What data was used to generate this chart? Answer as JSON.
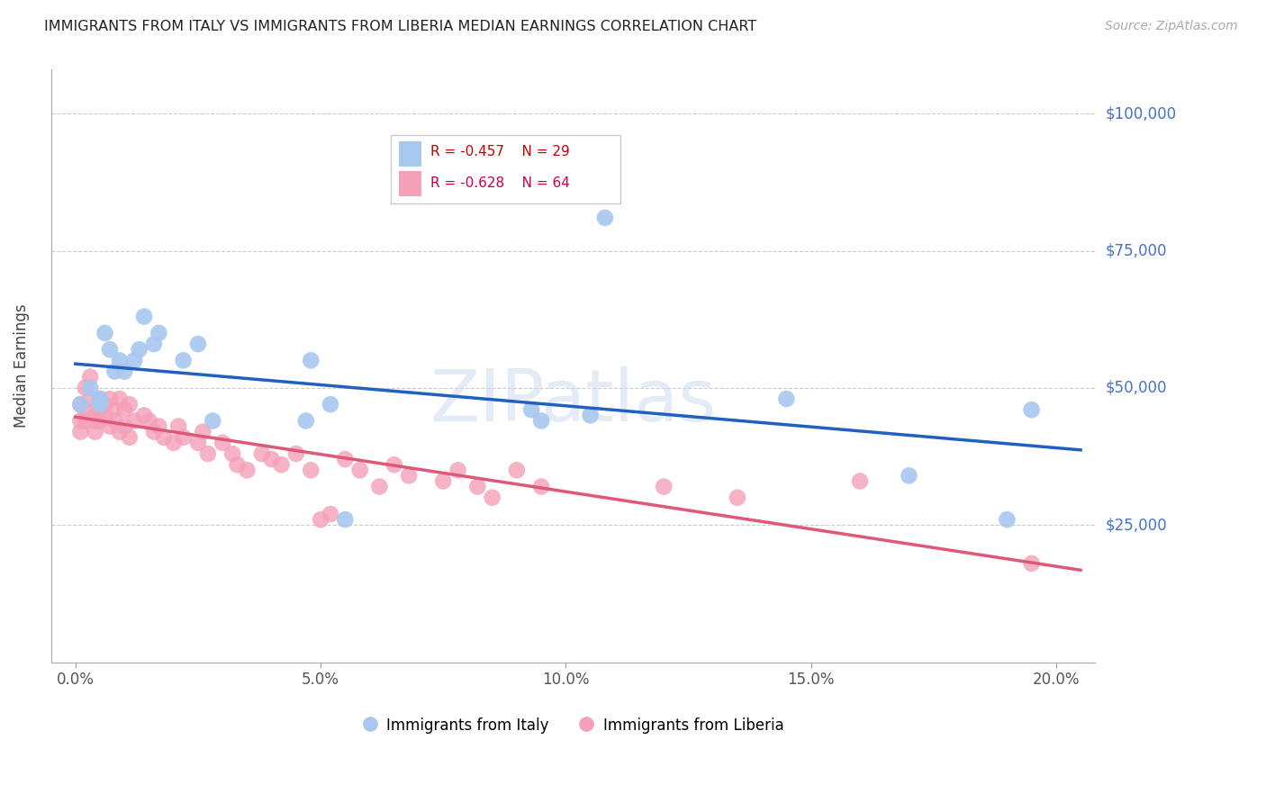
{
  "title": "IMMIGRANTS FROM ITALY VS IMMIGRANTS FROM LIBERIA MEDIAN EARNINGS CORRELATION CHART",
  "source": "Source: ZipAtlas.com",
  "ylabel": "Median Earnings",
  "xlabel_ticks": [
    "0.0%",
    "5.0%",
    "10.0%",
    "15.0%",
    "20.0%"
  ],
  "xlabel_vals": [
    0.0,
    0.05,
    0.1,
    0.15,
    0.2
  ],
  "ylabel_ticks": [
    0,
    25000,
    50000,
    75000,
    100000
  ],
  "ylabel_labels": [
    "",
    "$25,000",
    "$50,000",
    "$75,000",
    "$100,000"
  ],
  "ylim": [
    0,
    108000
  ],
  "xlim": [
    -0.005,
    0.208
  ],
  "legend_italy": "Immigrants from Italy",
  "legend_liberia": "Immigrants from Liberia",
  "R_italy": -0.457,
  "N_italy": 29,
  "R_liberia": -0.628,
  "N_liberia": 64,
  "italy_color": "#a8c8f0",
  "liberia_color": "#f4a0b8",
  "italy_line_color": "#2060c0",
  "liberia_line_color": "#e05878",
  "italy_x": [
    0.001,
    0.003,
    0.005,
    0.005,
    0.006,
    0.007,
    0.008,
    0.009,
    0.01,
    0.012,
    0.013,
    0.014,
    0.016,
    0.017,
    0.022,
    0.025,
    0.028,
    0.047,
    0.048,
    0.052,
    0.055,
    0.093,
    0.095,
    0.105,
    0.108,
    0.145,
    0.17,
    0.19,
    0.195
  ],
  "italy_y": [
    47000,
    50000,
    47000,
    48000,
    60000,
    57000,
    53000,
    55000,
    53000,
    55000,
    57000,
    63000,
    58000,
    60000,
    55000,
    58000,
    44000,
    44000,
    55000,
    47000,
    26000,
    46000,
    44000,
    45000,
    81000,
    48000,
    34000,
    26000,
    46000
  ],
  "liberia_x": [
    0.001,
    0.001,
    0.001,
    0.002,
    0.002,
    0.002,
    0.003,
    0.003,
    0.004,
    0.004,
    0.004,
    0.005,
    0.005,
    0.005,
    0.006,
    0.006,
    0.007,
    0.007,
    0.008,
    0.008,
    0.009,
    0.009,
    0.01,
    0.01,
    0.011,
    0.011,
    0.012,
    0.014,
    0.015,
    0.016,
    0.017,
    0.018,
    0.02,
    0.021,
    0.022,
    0.025,
    0.026,
    0.027,
    0.03,
    0.032,
    0.033,
    0.035,
    0.038,
    0.04,
    0.042,
    0.045,
    0.048,
    0.05,
    0.052,
    0.055,
    0.058,
    0.062,
    0.065,
    0.068,
    0.075,
    0.078,
    0.082,
    0.085,
    0.09,
    0.095,
    0.12,
    0.135,
    0.16,
    0.195
  ],
  "liberia_y": [
    47000,
    44000,
    42000,
    50000,
    46000,
    44000,
    52000,
    48000,
    45000,
    44000,
    42000,
    48000,
    46000,
    44000,
    47000,
    45000,
    43000,
    48000,
    46000,
    44000,
    42000,
    48000,
    46000,
    43000,
    41000,
    47000,
    44000,
    45000,
    44000,
    42000,
    43000,
    41000,
    40000,
    43000,
    41000,
    40000,
    42000,
    38000,
    40000,
    38000,
    36000,
    35000,
    38000,
    37000,
    36000,
    38000,
    35000,
    26000,
    27000,
    37000,
    35000,
    32000,
    36000,
    34000,
    33000,
    35000,
    32000,
    30000,
    35000,
    32000,
    32000,
    30000,
    33000,
    18000
  ],
  "watermark": "ZIPatlas",
  "background_color": "#ffffff",
  "grid_color": "#cccccc"
}
